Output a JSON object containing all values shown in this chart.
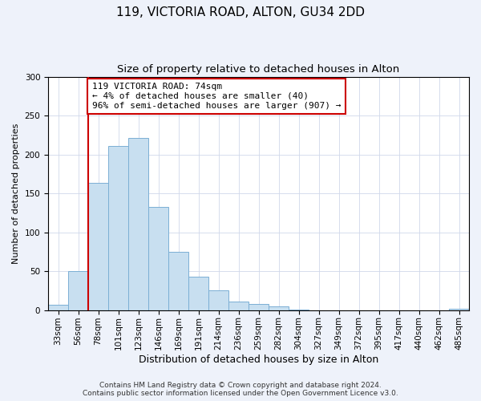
{
  "title": "119, VICTORIA ROAD, ALTON, GU34 2DD",
  "subtitle": "Size of property relative to detached houses in Alton",
  "xlabel": "Distribution of detached houses by size in Alton",
  "ylabel": "Number of detached properties",
  "bar_labels": [
    "33sqm",
    "56sqm",
    "78sqm",
    "101sqm",
    "123sqm",
    "146sqm",
    "169sqm",
    "191sqm",
    "214sqm",
    "236sqm",
    "259sqm",
    "282sqm",
    "304sqm",
    "327sqm",
    "349sqm",
    "372sqm",
    "395sqm",
    "417sqm",
    "440sqm",
    "462sqm",
    "485sqm"
  ],
  "bar_heights": [
    7,
    50,
    164,
    211,
    221,
    133,
    75,
    43,
    25,
    11,
    8,
    5,
    1,
    0,
    0,
    0,
    0,
    0,
    0,
    0,
    2
  ],
  "bar_color": "#c8dff0",
  "bar_edge_color": "#7bafd4",
  "vline_x_idx": 2,
  "vline_color": "#cc0000",
  "annotation_text": "119 VICTORIA ROAD: 74sqm\n← 4% of detached houses are smaller (40)\n96% of semi-detached houses are larger (907) →",
  "annotation_box_edge_color": "#cc0000",
  "annotation_box_face_color": "#ffffff",
  "ylim": [
    0,
    300
  ],
  "yticks": [
    0,
    50,
    100,
    150,
    200,
    250,
    300
  ],
  "footer_line1": "Contains HM Land Registry data © Crown copyright and database right 2024.",
  "footer_line2": "Contains public sector information licensed under the Open Government Licence v3.0.",
  "title_fontsize": 11,
  "subtitle_fontsize": 9.5,
  "xlabel_fontsize": 9,
  "ylabel_fontsize": 8,
  "tick_fontsize": 7.5,
  "annotation_fontsize": 8,
  "footer_fontsize": 6.5,
  "background_color": "#eef2fa",
  "plot_bg_color": "#ffffff",
  "grid_color": "#d0d8ea"
}
